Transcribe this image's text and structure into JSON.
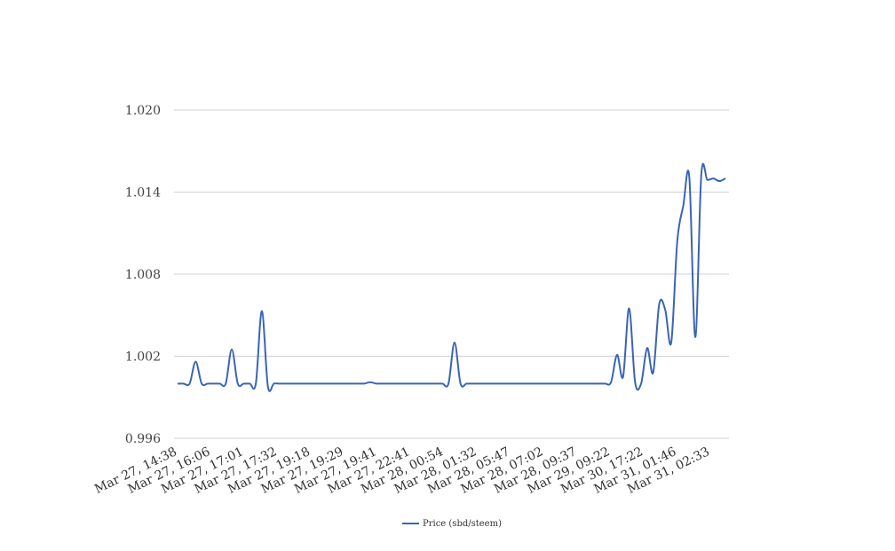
{
  "chart_data": {
    "type": "line",
    "title": "",
    "xlabel": "",
    "ylabel": "",
    "ylim": [
      0.996,
      1.02
    ],
    "yticks": [
      "0.996",
      "1.002",
      "1.008",
      "1.014",
      "1.020"
    ],
    "grid": true,
    "legend_position": "bottom",
    "line_color": "#3a64b8",
    "x_tick_labels": [
      "Mar 27, 14:38",
      "Mar 27, 16:06",
      "Mar 27, 17:01",
      "Mar 27, 17:32",
      "Mar 27, 19:18",
      "Mar 27, 19:29",
      "Mar 27, 19:41",
      "Mar 27, 22:41",
      "Mar 28, 00:54",
      "Mar 28, 01:32",
      "Mar 28, 05:47",
      "Mar 28, 07:02",
      "Mar 28, 09:37",
      "Mar 29, 09:22",
      "Mar 30, 17:22",
      "Mar 31, 01:46",
      "Mar 31, 02:33"
    ],
    "series": [
      {
        "name": "Price (sbd/steem)",
        "values": [
          1.0,
          1.0,
          1.0,
          1.0016,
          1.0,
          1.0,
          1.0,
          1.0,
          1.0,
          1.0025,
          1.0,
          1.0,
          1.0,
          1.0,
          1.0053,
          0.9998,
          1.0,
          1.0,
          1.0,
          1.0,
          1.0,
          1.0,
          1.0,
          1.0,
          1.0,
          1.0,
          1.0,
          1.0,
          1.0,
          1.0,
          1.0,
          1.0,
          1.0001,
          1.0,
          1.0,
          1.0,
          1.0,
          1.0,
          1.0,
          1.0,
          1.0,
          1.0,
          1.0,
          1.0,
          1.0,
          1.0,
          1.003,
          1.0,
          1.0,
          1.0,
          1.0,
          1.0,
          1.0,
          1.0,
          1.0,
          1.0,
          1.0,
          1.0,
          1.0,
          1.0,
          1.0,
          1.0,
          1.0,
          1.0,
          1.0,
          1.0,
          1.0,
          1.0,
          1.0,
          1.0,
          1.0,
          1.0,
          1.0001,
          1.0021,
          1.0005,
          1.0055,
          1.0001,
          1.0,
          1.0026,
          1.0008,
          1.0058,
          1.0054,
          1.003,
          1.0104,
          1.013,
          1.0151,
          1.0034,
          1.0153,
          1.0149,
          1.015,
          1.0148,
          1.015
        ]
      }
    ]
  }
}
